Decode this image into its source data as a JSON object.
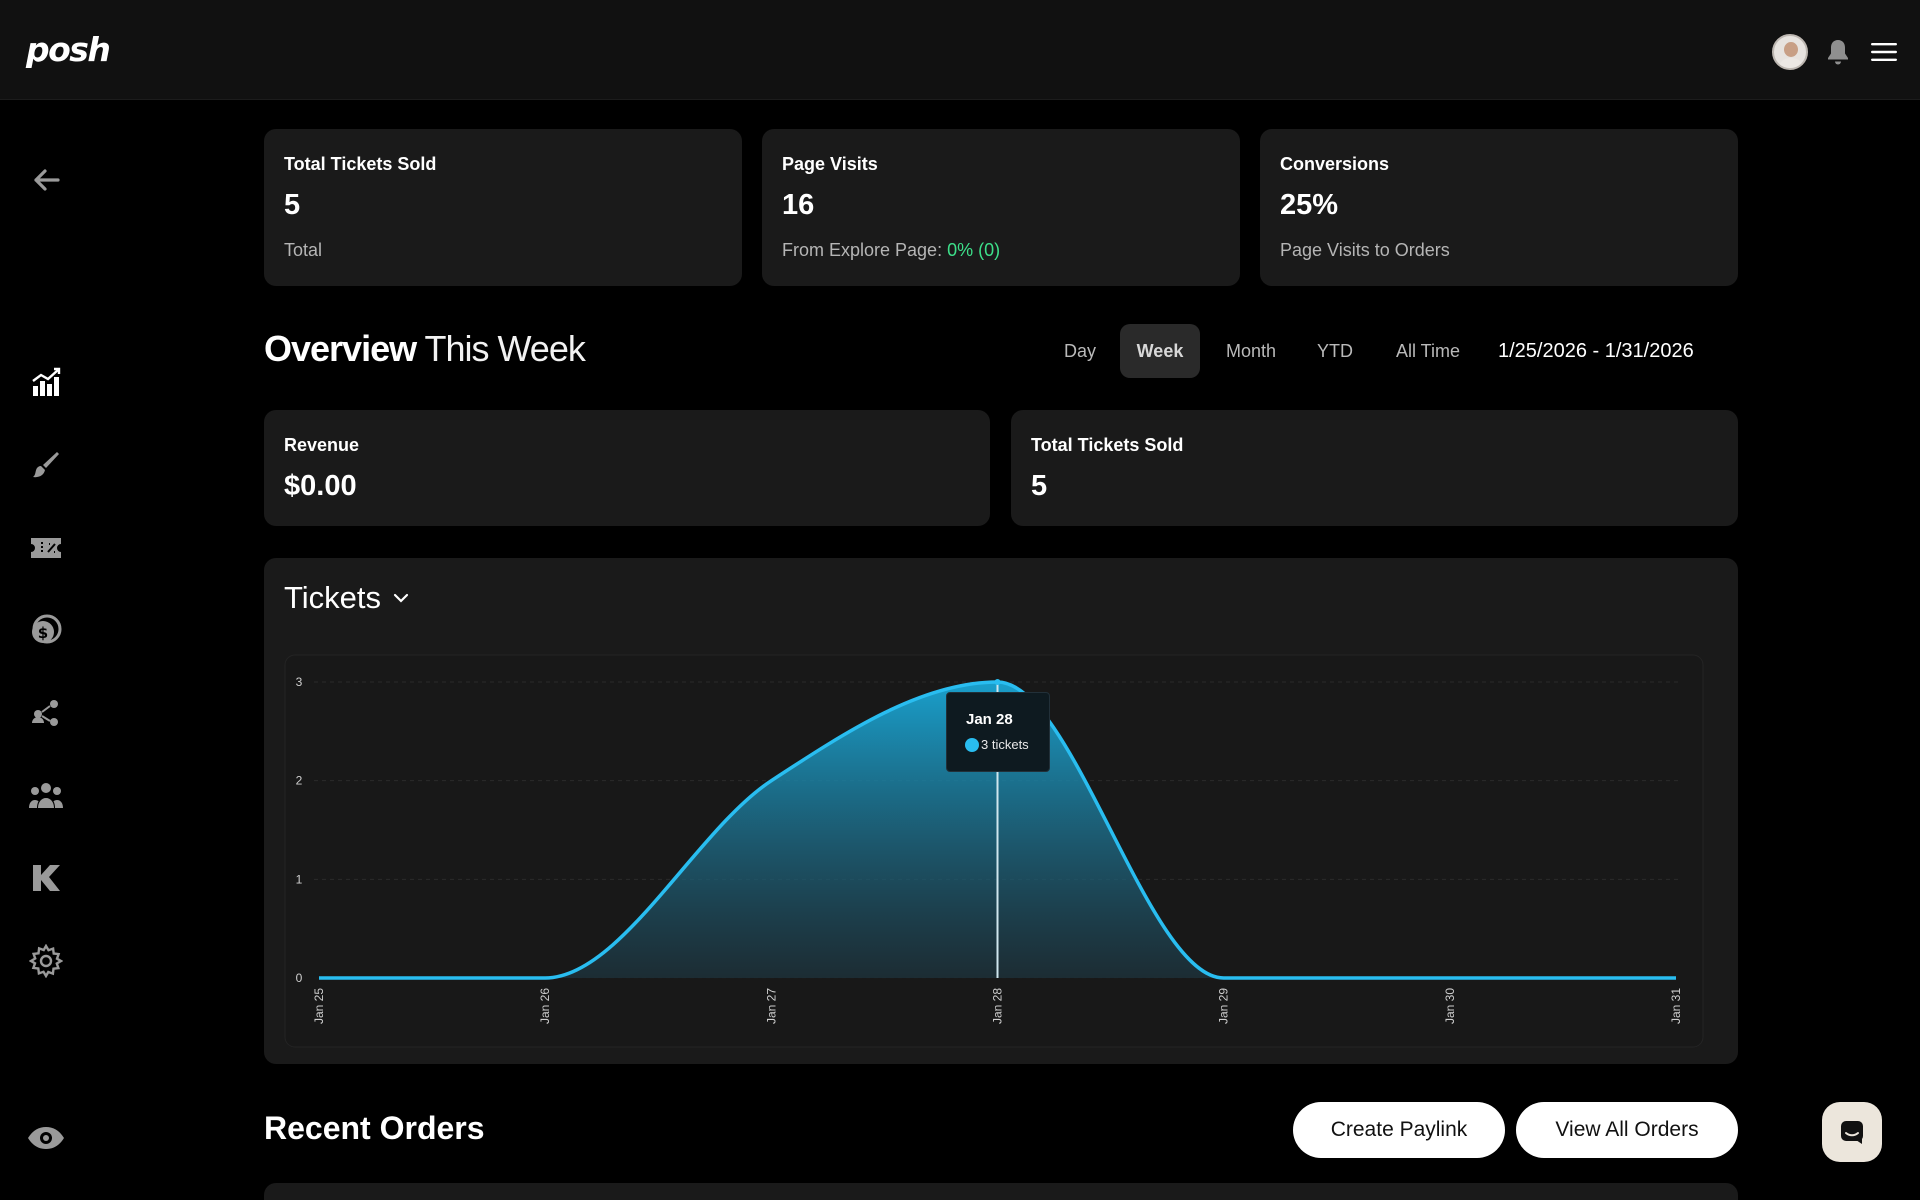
{
  "brand": {
    "logo": "posh"
  },
  "header": {
    "icons": [
      "avatar",
      "bell-icon",
      "menu-icon"
    ]
  },
  "sidebar": {
    "items": [
      {
        "name": "back",
        "icon": "arrow-left-icon"
      },
      {
        "name": "analytics",
        "icon": "chart-bars-icon"
      },
      {
        "name": "design",
        "icon": "paintbrush-icon"
      },
      {
        "name": "tickets",
        "icon": "ticket-icon"
      },
      {
        "name": "finance",
        "icon": "coins-icon"
      },
      {
        "name": "referrals",
        "icon": "network-users-icon"
      },
      {
        "name": "team",
        "icon": "group-icon"
      },
      {
        "name": "kickback",
        "icon": "k-logo-icon"
      },
      {
        "name": "settings",
        "icon": "gear-icon"
      },
      {
        "name": "preview",
        "icon": "eye-icon"
      }
    ]
  },
  "stats": {
    "tickets": {
      "label": "Total Tickets Sold",
      "value": "5",
      "sub": "Total"
    },
    "visits": {
      "label": "Page Visits",
      "value": "16",
      "sub_prefix": "From Explore Page: ",
      "sub_highlight": "0% (0)"
    },
    "conversions": {
      "label": "Conversions",
      "value": "25%",
      "sub": "Page Visits to Orders"
    }
  },
  "overview": {
    "title_strong": "Overview",
    "title_light": "This Week",
    "tabs": [
      "Day",
      "Week",
      "Month",
      "YTD",
      "All Time"
    ],
    "active_tab": "Week",
    "date_range": "1/25/2026 - 1/31/2026"
  },
  "summary": {
    "revenue": {
      "label": "Revenue",
      "value": "$0.00"
    },
    "tickets": {
      "label": "Total Tickets Sold",
      "value": "5"
    }
  },
  "chart_panel": {
    "title": "Tickets",
    "tooltip": {
      "date": "Jan 28",
      "value": "3 tickets"
    }
  },
  "chart_data": {
    "type": "area",
    "title": "Tickets",
    "categories": [
      "Jan 25",
      "Jan 26",
      "Jan 27",
      "Jan 28",
      "Jan 29",
      "Jan 30",
      "Jan 31"
    ],
    "series": [
      {
        "values": [
          0,
          0,
          2,
          3,
          0,
          0,
          0
        ]
      }
    ],
    "ylim": [
      0,
      3
    ],
    "yticks": [
      "0",
      "1",
      "2",
      "3"
    ],
    "grid": true,
    "color": "#29bdf0"
  },
  "recent_orders": {
    "title": "Recent Orders",
    "create_paylink": "Create Paylink",
    "view_all": "View All Orders"
  },
  "colors": {
    "accent": "#29bdf0",
    "positive": "#3de08a",
    "card": "#1a1a1a"
  }
}
